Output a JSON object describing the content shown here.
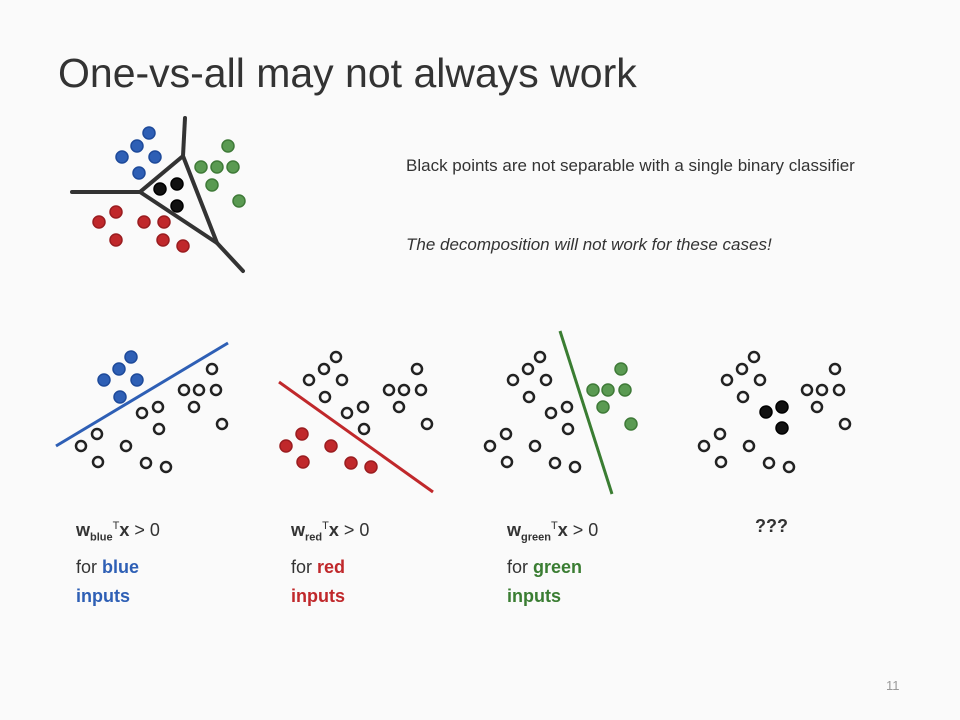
{
  "title": "One-vs-all may not always work",
  "notes": [
    "Black points are not separable with a single binary classifier",
    "The decomposition will not work for these cases!"
  ],
  "panels": [
    {
      "w": "w",
      "subscript": "blue",
      "superscript": "T",
      "x": "x",
      "relation": "> 0",
      "for": "for",
      "highlight": "blue",
      "inputs": "inputs"
    },
    {
      "w": "w",
      "subscript": "red",
      "superscript": "T",
      "x": "x",
      "relation": "> 0",
      "for": "for",
      "highlight": "red",
      "inputs": "inputs"
    },
    {
      "w": "w",
      "subscript": "green",
      "superscript": "T",
      "x": "x",
      "relation": "> 0",
      "for": "for",
      "highlight": "green",
      "inputs": "inputs"
    },
    {
      "caption": "???"
    }
  ],
  "page_number": "11"
}
